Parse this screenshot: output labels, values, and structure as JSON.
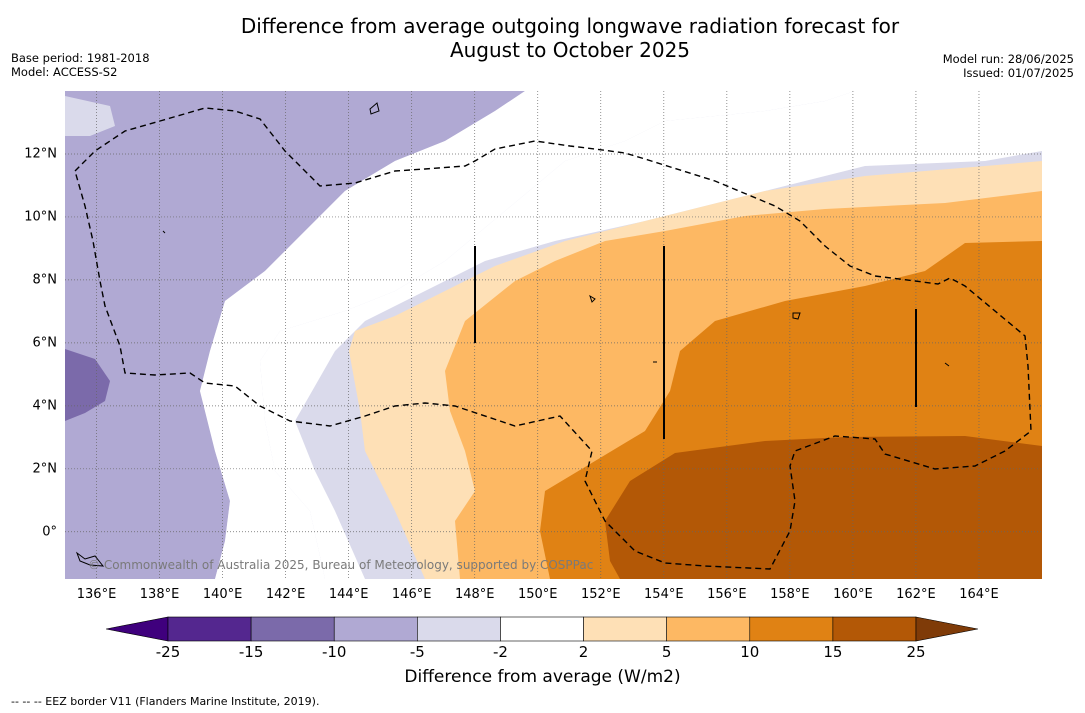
{
  "header": {
    "title_line1": "Difference from average outgoing longwave radiation forecast for",
    "title_line2": "August to October 2025",
    "base_period": "Base period: 1981-2018",
    "model": "Model: ACCESS-S2",
    "model_run": "Model run: 28/06/2025",
    "issued": "Issued: 01/07/2025"
  },
  "map": {
    "lon_ticks": [
      "136°E",
      "138°E",
      "140°E",
      "142°E",
      "144°E",
      "146°E",
      "148°E",
      "150°E",
      "152°E",
      "154°E",
      "156°E",
      "158°E",
      "160°E",
      "162°E",
      "164°E"
    ],
    "lat_ticks": [
      "12°N",
      "10°N",
      "8°N",
      "6°N",
      "4°N",
      "2°N",
      "0°"
    ],
    "lon_range": [
      135,
      166
    ],
    "lat_range": [
      -1.5,
      14
    ],
    "copyright": "© Commonwealth of Australia 2025, Bureau of Meteorology, supported by COSPPac",
    "grid": "dotted"
  },
  "colorbar": {
    "title": "Difference from average (W/m2)",
    "labels": [
      "-25",
      "-15",
      "-10",
      "-5",
      "-2",
      "2",
      "5",
      "10",
      "15",
      "25"
    ],
    "colors": [
      "#3f007d",
      "#54278f",
      "#7b6aaa",
      "#b0a9d3",
      "#dadaeb",
      "#ffffff",
      "#fee0b6",
      "#fdb863",
      "#e08214",
      "#b35806",
      "#7f3b08"
    ]
  },
  "legend": {
    "eez_note": "--  --  -- EEZ border V11 (Flanders Marine Institute, 2019)."
  }
}
